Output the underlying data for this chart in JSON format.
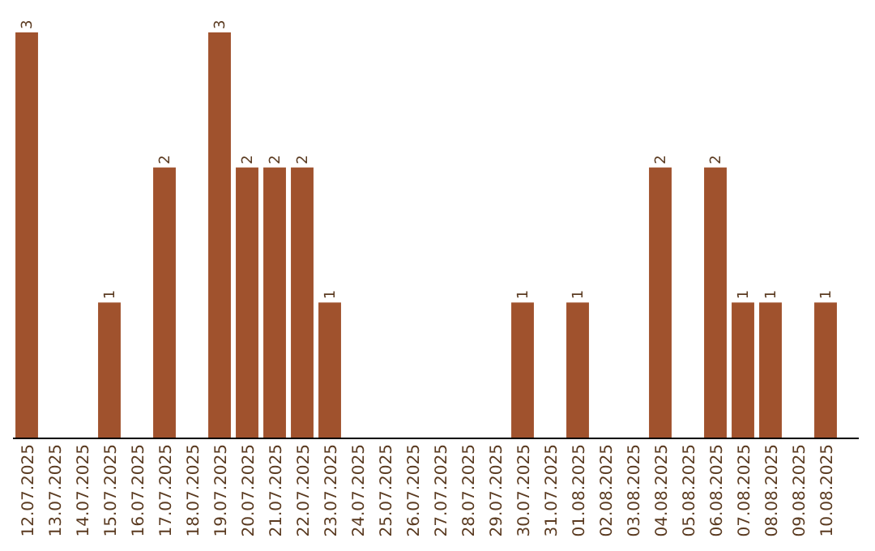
{
  "chart_data": {
    "type": "bar",
    "categories": [
      "12.07.2025",
      "13.07.2025",
      "14.07.2025",
      "15.07.2025",
      "16.07.2025",
      "17.07.2025",
      "18.07.2025",
      "19.07.2025",
      "20.07.2025",
      "21.07.2025",
      "22.07.2025",
      "23.07.2025",
      "24.07.2025",
      "25.07.2025",
      "26.07.2025",
      "27.07.2025",
      "28.07.2025",
      "29.07.2025",
      "30.07.2025",
      "31.07.2025",
      "01.08.2025",
      "02.08.2025",
      "03.08.2025",
      "04.08.2025",
      "05.08.2025",
      "06.08.2025",
      "07.08.2025",
      "08.08.2025",
      "09.08.2025",
      "10.08.2025"
    ],
    "values": [
      3,
      0,
      0,
      1,
      0,
      2,
      0,
      3,
      2,
      2,
      2,
      1,
      0,
      0,
      0,
      0,
      0,
      0,
      1,
      0,
      1,
      0,
      0,
      2,
      0,
      2,
      1,
      1,
      0,
      1
    ],
    "value_labels": [
      "3",
      null,
      null,
      "1",
      null,
      "2",
      null,
      "3",
      "2",
      "2",
      "2",
      "1",
      null,
      null,
      null,
      null,
      null,
      null,
      "1",
      null,
      "1",
      null,
      null,
      "2",
      null,
      "2",
      "1",
      "1",
      null,
      "1"
    ],
    "color": "#a0522d"
  }
}
